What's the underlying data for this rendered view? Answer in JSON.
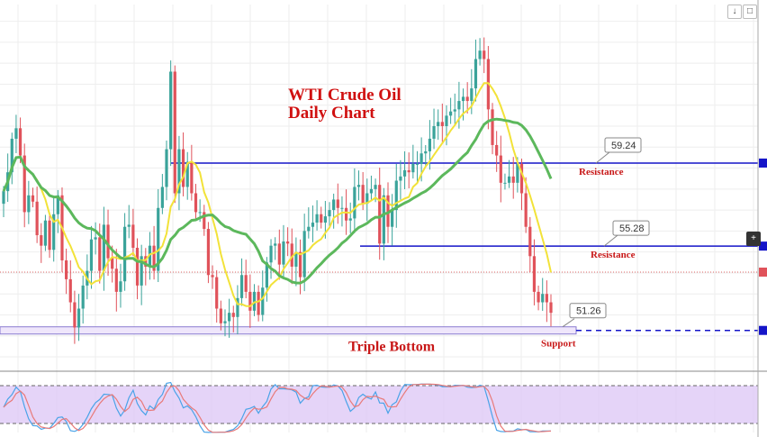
{
  "chart_data": {
    "type": "candlestick",
    "title_line1": "WTI Crude Oil",
    "title_line2": "Daily Chart",
    "ylim": [
      49.4,
      66.8
    ],
    "colors": {
      "up": "#3aa39a",
      "down": "#e0525a",
      "ma_fast": "#f2e239",
      "ma_slow": "#5cb85c",
      "level": "#1515c8",
      "support": "#8a7bd0",
      "osc_k": "#4aa3e8",
      "osc_d": "#e87a7a",
      "osc_band": "#dcc6f5"
    },
    "resistance_levels": [
      {
        "value": 59.24,
        "label": "59.24",
        "note": "Resistance"
      },
      {
        "value": 55.28,
        "label": "55.28",
        "note": "Resistance"
      }
    ],
    "support_level": {
      "value": 51.26,
      "label": "51.26",
      "note": "Support"
    },
    "pattern_label": "Triple Bottom",
    "closes": [
      57.9,
      58.8,
      60.4,
      60.9,
      59.6,
      56.9,
      57.7,
      57.4,
      55.8,
      55.3,
      56.5,
      55.1,
      56.8,
      57.7,
      54.6,
      53.7,
      52.6,
      51.4,
      52.3,
      53.4,
      54.1,
      55.6,
      55.7,
      54.1,
      56.3,
      54.7,
      54.2,
      53.1,
      53.6,
      56.2,
      56.3,
      55.2,
      53.4,
      54.8,
      54.3,
      55.3,
      54.1,
      57.1,
      58.1,
      59.9,
      63.6,
      57.8,
      59.9,
      58.1,
      59.3,
      57.8,
      56.9,
      56.9,
      56.1,
      53.9,
      53.8,
      52.3,
      51.6,
      51.7,
      52.1,
      51.9,
      52.8,
      53.9,
      53.1,
      52.2,
      53.1,
      52.0,
      53.3,
      54.5,
      55.3,
      55.4,
      54.4,
      55.5,
      55.4,
      54.3,
      55.0,
      53.8,
      56.0,
      56.2,
      56.4,
      56.8,
      56.4,
      56.7,
      57.0,
      57.5,
      57.1,
      57.1,
      56.5,
      56.6,
      58.1,
      58.2,
      57.3,
      57.8,
      58.0,
      58.2,
      55.4,
      57.7,
      56.2,
      57.0,
      58.4,
      58.6,
      58.9,
      58.8,
      59.2,
      59.2,
      59.7,
      59.8,
      60.4,
      61.0,
      61.2,
      61.0,
      61.5,
      61.7,
      61.8,
      62.2,
      62.4,
      62.2,
      62.8,
      64.2,
      64.6,
      64.2,
      61.8,
      60.1,
      59.6,
      58.3,
      58.3,
      58.6,
      58.3,
      59.2,
      57.8,
      56.2,
      54.8,
      53.1,
      52.6,
      53.0,
      52.6,
      52.1
    ]
  },
  "toolbar": {
    "arrow_icon": "↓",
    "box_icon": "□",
    "plus_icon": "+"
  }
}
